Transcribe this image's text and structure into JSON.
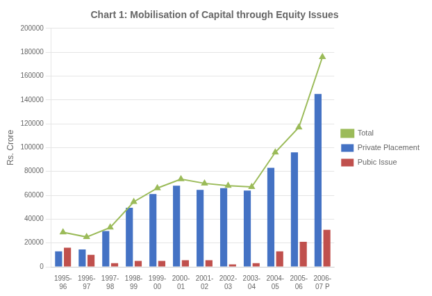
{
  "chart_data": {
    "type": "bar",
    "title": "Chart 1: Mobilisation of Capital through Equity Issues",
    "categories": [
      "1995-\n96",
      "1996-\n97",
      "1997-\n98",
      "1998-\n99",
      "1999-\n00",
      "2000-\n01",
      "2001-\n02",
      "2002-\n03",
      "2003-\n04",
      "2004-\n05",
      "2005-\n06",
      "2006-\n07 P"
    ],
    "series": [
      {
        "name": "Private Placement",
        "type": "bar",
        "color": "#4472C4",
        "values": [
          13000,
          14500,
          30000,
          49500,
          61000,
          68000,
          64500,
          66000,
          64000,
          83000,
          96000,
          145000
        ]
      },
      {
        "name": "Pubic Issue",
        "type": "bar",
        "color": "#C0504D",
        "values": [
          16000,
          10000,
          3000,
          5000,
          5000,
          5500,
          5500,
          2000,
          3000,
          13000,
          21000,
          31000
        ]
      },
      {
        "name": "Total",
        "type": "line",
        "color": "#9BBB59",
        "marker": "triangle",
        "line_style": "solid",
        "values": [
          29000,
          25000,
          33000,
          54500,
          66000,
          73500,
          70000,
          68000,
          67000,
          96000,
          117000,
          176000
        ]
      }
    ],
    "ylabel": "Rs. Crore",
    "ylim": [
      0,
      200000
    ],
    "yticks": [
      0,
      20000,
      40000,
      60000,
      80000,
      100000,
      120000,
      140000,
      160000,
      180000,
      200000
    ],
    "grid": true,
    "legend": "right"
  }
}
